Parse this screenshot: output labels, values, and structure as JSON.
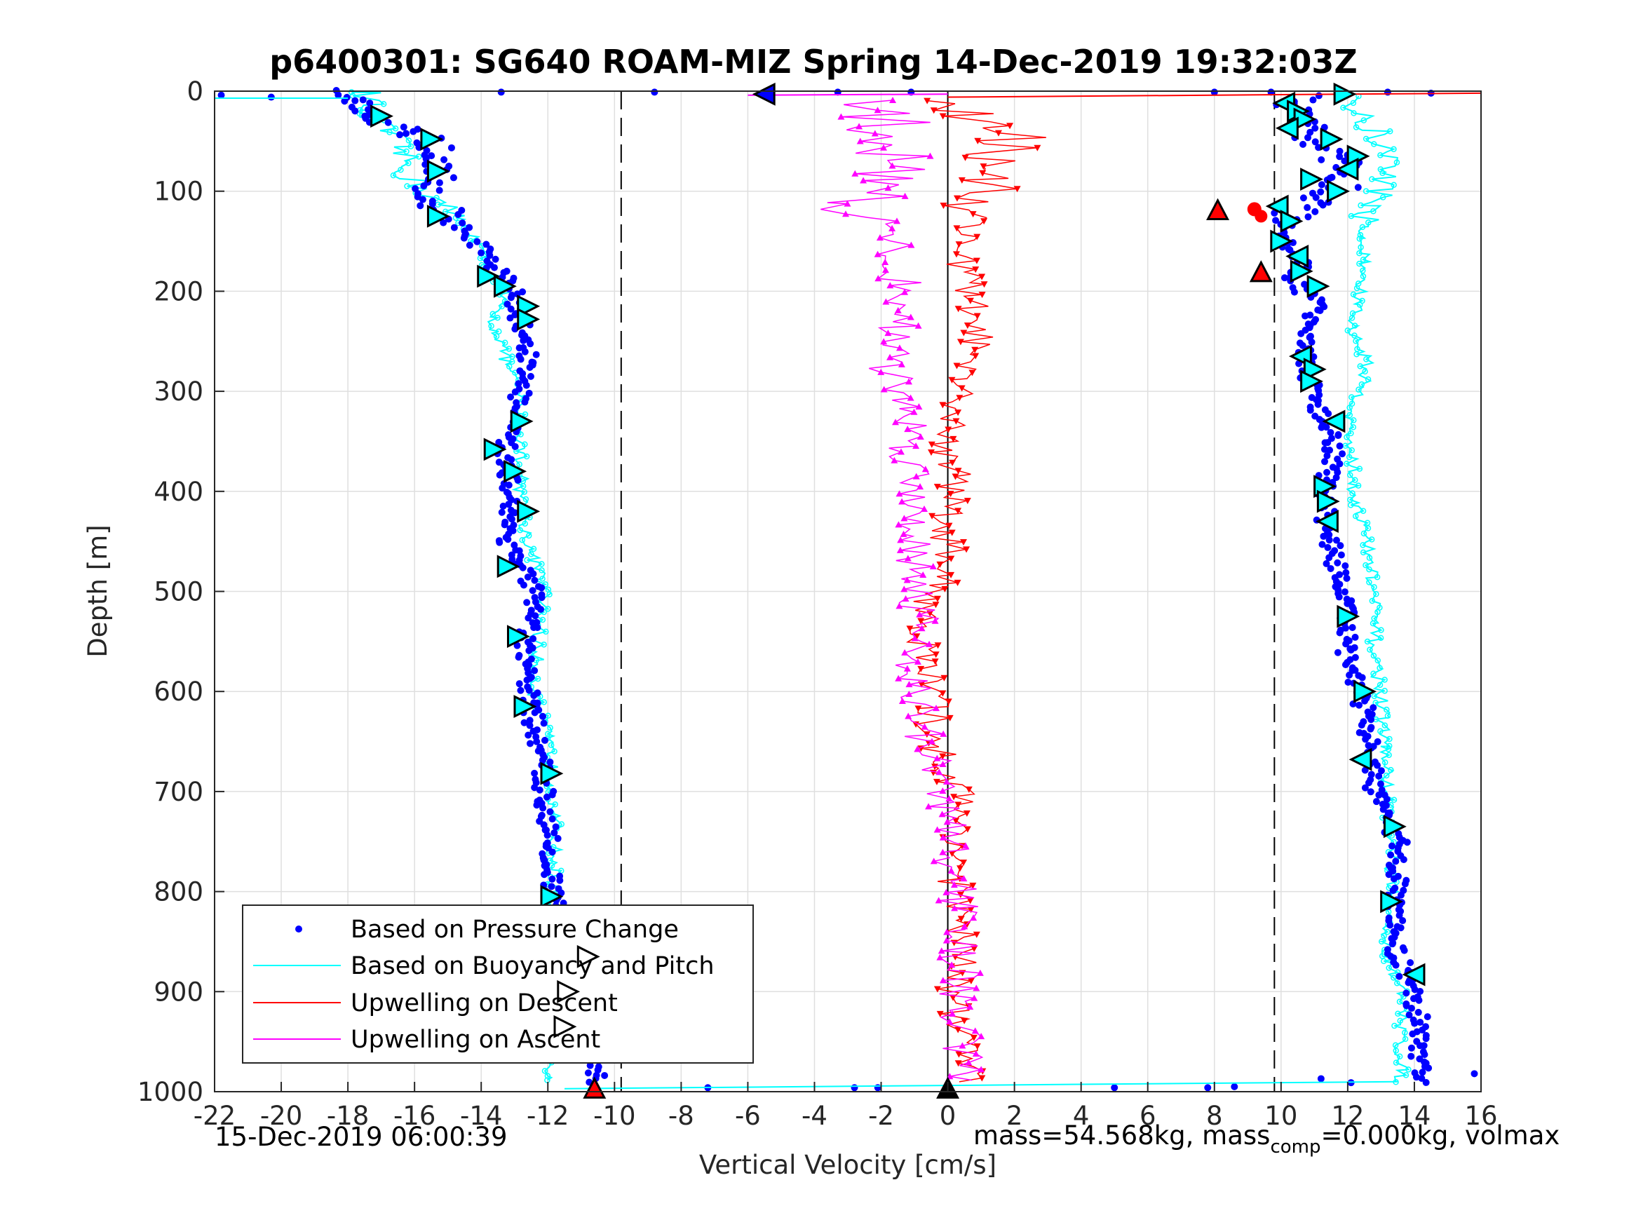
{
  "chart_data": {
    "type": "scatter",
    "title": "p6400301: SG640 ROAM-MIZ Spring 14-Dec-2019 19:32:03Z",
    "xlabel": "Vertical Velocity [cm/s]",
    "ylabel": "Depth [m]",
    "xlim": [
      -22,
      16
    ],
    "ylim": [
      1000,
      0
    ],
    "y_reversed": true,
    "grid": true,
    "x_ticks": [
      "-22",
      "-20",
      "-18",
      "-16",
      "-14",
      "-12",
      "-10",
      "-8",
      "-6",
      "-4",
      "-2",
      "0",
      "2",
      "4",
      "6",
      "8",
      "10",
      "12",
      "14",
      "16"
    ],
    "y_ticks": [
      "0",
      "100",
      "200",
      "300",
      "400",
      "500",
      "600",
      "700",
      "800",
      "900",
      "1000"
    ],
    "reference_lines": [
      {
        "x": -9.8,
        "style": "dashed"
      },
      {
        "x": 9.8,
        "style": "dashed"
      },
      {
        "x": 0,
        "style": "solid"
      }
    ],
    "legend_position": "bottom-left",
    "legend": [
      "Based on Pressure Change",
      "Based on Buoyancy and Pitch",
      "Upwelling on Descent",
      "Upwelling on Ascent"
    ],
    "series": [
      {
        "name": "Based on Pressure Change",
        "color": "#0000ff",
        "marker": "dot",
        "descent": {
          "depth": [
            0,
            10,
            25,
            40,
            55,
            70,
            85,
            100,
            125,
            150,
            175,
            200,
            225,
            250,
            275,
            300,
            350,
            400,
            450,
            500,
            550,
            600,
            650,
            700,
            750,
            800,
            850,
            900,
            950,
            990
          ],
          "w": [
            -19.0,
            -17.8,
            -17.0,
            -16.2,
            -15.4,
            -15.3,
            -15.4,
            -15.7,
            -15.0,
            -14.2,
            -13.6,
            -13.0,
            -12.9,
            -12.6,
            -12.6,
            -12.8,
            -13.3,
            -13.1,
            -13.2,
            -12.4,
            -12.7,
            -12.6,
            -12.3,
            -12.1,
            -11.9,
            -11.9,
            -11.6,
            -11.3,
            -10.9,
            -10.5
          ]
        },
        "ascent": {
          "depth": [
            990,
            950,
            900,
            850,
            800,
            750,
            700,
            650,
            600,
            560,
            520,
            480,
            440,
            400,
            360,
            330,
            300,
            270,
            240,
            210,
            190,
            170,
            150,
            130,
            100,
            80,
            60,
            40,
            20,
            5
          ],
          "w": [
            14.2,
            14.2,
            14.0,
            13.3,
            13.5,
            13.5,
            12.8,
            12.6,
            12.4,
            11.9,
            12.0,
            11.7,
            11.4,
            11.3,
            11.6,
            11.3,
            10.9,
            10.7,
            10.9,
            11.1,
            10.3,
            10.6,
            10.2,
            10.0,
            11.7,
            12.0,
            11.5,
            10.8,
            10.3,
            10.8
          ]
        }
      },
      {
        "name": "Based on Buoyancy and Pitch",
        "color": "#00ffff",
        "marker": "circle",
        "descent": {
          "depth": [
            0,
            10,
            25,
            40,
            55,
            70,
            85,
            100,
            125,
            150,
            175,
            200,
            225,
            250,
            275,
            300,
            350,
            400,
            450,
            500,
            550,
            600,
            650,
            700,
            750,
            800,
            850,
            900,
            950,
            990
          ],
          "w": [
            -17.5,
            -17.3,
            -17.5,
            -16.8,
            -16.5,
            -16.3,
            -16.2,
            -15.7,
            -14.8,
            -14.1,
            -13.9,
            -13.3,
            -13.7,
            -13.4,
            -13.2,
            -12.9,
            -12.8,
            -12.8,
            -12.6,
            -12.1,
            -12.3,
            -12.4,
            -12.0,
            -11.8,
            -11.8,
            -11.8,
            -11.8,
            -11.9,
            -11.9,
            -11.9
          ]
        },
        "ascent": {
          "depth": [
            990,
            950,
            900,
            850,
            800,
            750,
            700,
            650,
            600,
            560,
            520,
            480,
            440,
            400,
            360,
            330,
            300,
            270,
            240,
            210,
            190,
            170,
            150,
            130,
            100,
            80,
            60,
            40,
            20,
            5
          ],
          "w": [
            13.6,
            13.6,
            13.6,
            13.1,
            13.3,
            13.3,
            13.2,
            13.1,
            13.0,
            12.8,
            12.8,
            12.7,
            12.5,
            12.2,
            12.1,
            12.0,
            12.4,
            12.6,
            12.1,
            12.3,
            12.4,
            12.5,
            12.4,
            12.5,
            13.0,
            13.3,
            13.1,
            12.8,
            12.1,
            12.4
          ]
        }
      },
      {
        "name": "Upwelling on Descent",
        "color": "#ff0000",
        "marker": "triangle-down",
        "depth": [
          10,
          30,
          50,
          70,
          90,
          110,
          130,
          150,
          175,
          200,
          225,
          250,
          275,
          300,
          325,
          350,
          375,
          400,
          425,
          450,
          475,
          500,
          550,
          600,
          650,
          700,
          750,
          800,
          850,
          900,
          950,
          990
        ],
        "w": [
          0.4,
          1.1,
          2.0,
          1.5,
          1.3,
          0.8,
          0.7,
          0.6,
          0.5,
          0.6,
          0.8,
          0.9,
          0.3,
          0.2,
          0.3,
          -0.1,
          0.2,
          0.2,
          0.0,
          0.0,
          0.1,
          -0.4,
          -0.8,
          -0.5,
          -0.4,
          0.3,
          0.4,
          0.2,
          0.5,
          0.1,
          0.6,
          0.5
        ]
      },
      {
        "name": "Upwelling on Ascent",
        "color": "#ff00ff",
        "marker": "triangle-up",
        "depth": [
          10,
          30,
          50,
          70,
          90,
          110,
          130,
          150,
          175,
          200,
          225,
          250,
          275,
          300,
          325,
          350,
          375,
          400,
          425,
          450,
          475,
          500,
          550,
          600,
          650,
          700,
          750,
          800,
          850,
          900,
          950,
          990
        ],
        "w": [
          -2.0,
          -1.9,
          -1.8,
          -1.4,
          -1.7,
          -2.6,
          -2.1,
          -1.7,
          -1.6,
          -1.3,
          -1.4,
          -1.5,
          -1.8,
          -1.5,
          -1.0,
          -1.2,
          -1.1,
          -0.9,
          -0.9,
          -1.0,
          -0.9,
          -0.8,
          -0.9,
          -1.0,
          -0.7,
          -0.2,
          0.1,
          0.3,
          0.4,
          0.3,
          0.4,
          0.6
        ]
      }
    ],
    "marker_triangles": {
      "descent_side": {
        "depth": [
          25,
          48,
          80,
          125,
          185,
          195,
          215,
          228,
          330,
          358,
          380,
          420,
          475,
          545,
          615,
          682,
          805,
          865,
          900,
          935
        ],
        "w": [
          -17.0,
          -15.5,
          -15.3,
          -15.3,
          -13.8,
          -13.3,
          -12.6,
          -12.6,
          -12.8,
          -13.6,
          -13.0,
          -12.6,
          -13.2,
          -12.9,
          -12.7,
          -11.9,
          -11.9,
          -10.8,
          -11.4,
          -11.5
        ]
      },
      "ascent_side": {
        "depth": [
          3,
          12,
          20,
          28,
          37,
          48,
          65,
          78,
          88,
          100,
          115,
          130,
          150,
          165,
          180,
          195,
          265,
          278,
          290,
          330,
          395,
          410,
          430,
          525,
          600,
          668,
          735,
          810,
          883
        ],
        "w": [
          11.9,
          10.1,
          10.5,
          10.7,
          10.2,
          11.5,
          12.3,
          12.0,
          10.9,
          11.7,
          9.9,
          10.3,
          10.0,
          10.5,
          10.6,
          11.1,
          10.6,
          11.0,
          10.9,
          11.6,
          11.3,
          11.4,
          11.4,
          12.0,
          12.5,
          12.4,
          13.4,
          13.3,
          14.0
        ]
      },
      "red_triangles": {
        "depth": [
          120,
          182,
          998
        ],
        "w": [
          8.1,
          9.4,
          -10.6
        ]
      },
      "black_up_triangle": {
        "depth": [
          998
        ],
        "w": [
          0.0
        ]
      },
      "start_marker": {
        "depth": [
          3
        ],
        "w": [
          -5.5
        ]
      }
    }
  },
  "footer": {
    "left": "15-Dec-2019 06:00:39",
    "right_prefix": "mass=54.568kg, mass",
    "right_sub": "comp",
    "right_suffix": "=0.000kg, volmax"
  }
}
